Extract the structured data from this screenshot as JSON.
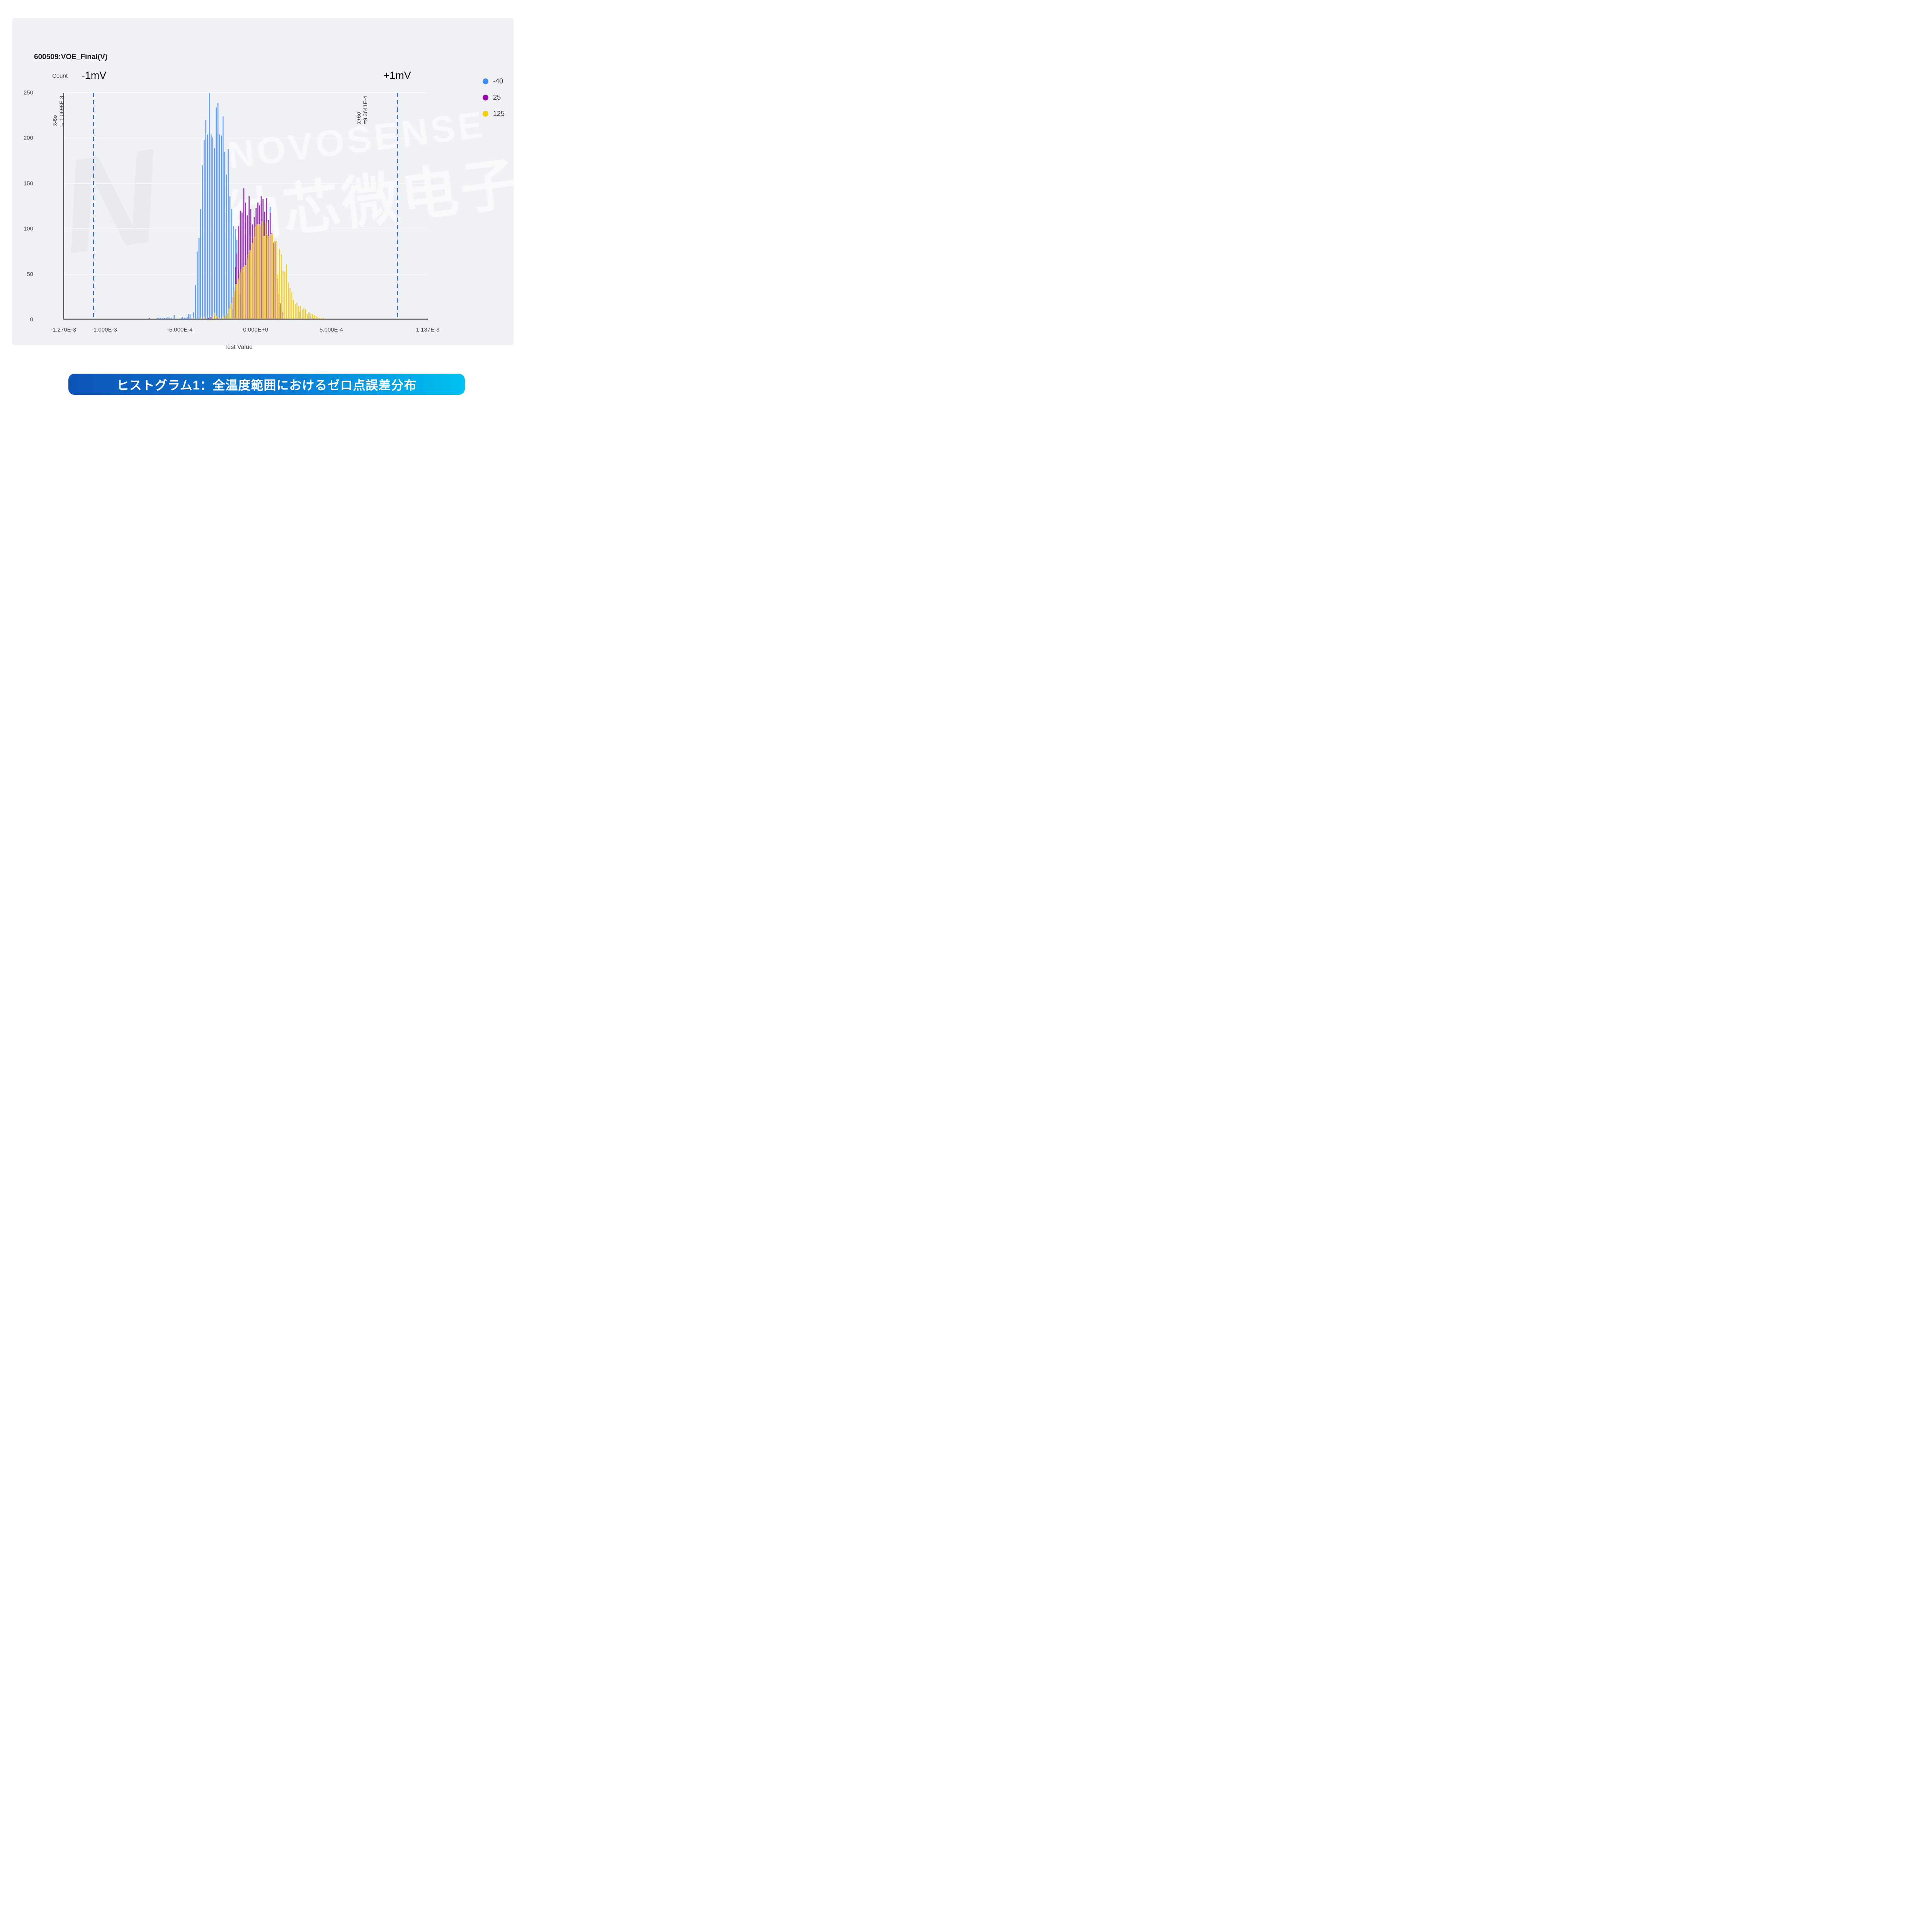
{
  "header": {
    "title": "600509:VOE_Final(V)"
  },
  "chart": {
    "y_axis_label": "Count",
    "x_axis_label": "Test Value",
    "annotations": {
      "left_limit": "-1mV",
      "right_limit": "+1mV"
    },
    "colors": {
      "card_background": "#f0f1f4",
      "gridline": "#fafbfd",
      "axis": "#474747",
      "ref_line": "#2c6cdd"
    }
  },
  "watermark": {
    "letter": "N",
    "brand": "NOVOSENSE",
    "cjk": "纳芯微电子"
  },
  "caption": {
    "text": "ヒストグラム1：全温度範囲におけるゼロ点誤差分布"
  },
  "chart_data": {
    "type": "bar",
    "subtype": "overlaid-histogram",
    "title": "600509:VOE_Final(V)",
    "xlabel": "Test Value",
    "ylabel": "Count",
    "xlim": [
      -0.00127,
      0.001137
    ],
    "ylim": [
      0,
      250
    ],
    "grid": true,
    "legend_position": "top-right",
    "bin_width_volts": 1.125e-05,
    "value_unit_of_bins": 0.0001,
    "x_ticks": [
      {
        "label": "-1.270E-3",
        "value": -0.00127
      },
      {
        "label": "-1.000E-3",
        "value": -0.001
      },
      {
        "label": "-5.000E-4",
        "value": -0.0005
      },
      {
        "label": "0.000E+0",
        "value": 0.0
      },
      {
        "label": "5.000E-4",
        "value": 0.0005
      },
      {
        "label": "1.137E-3",
        "value": 0.001137
      }
    ],
    "y_ticks": [
      0,
      50,
      100,
      150,
      200,
      250
    ],
    "ref_lines": [
      {
        "value": -0.0010698,
        "label_sigma": "x̃-6σ",
        "label_value": "=-1.0698E-3"
      },
      {
        "value": 0.00093641,
        "label_sigma": "x̃+6σ",
        "label_value": "=9.3641E-4"
      }
    ],
    "legend": [
      {
        "label": "-40",
        "color": "#3d8af0"
      },
      {
        "label": "25",
        "color": "#9208aa"
      },
      {
        "label": "125",
        "color": "#f5cd0a"
      }
    ],
    "series": [
      {
        "name": "-40",
        "fill": "#669ff2",
        "opacity": 1.0,
        "bins": [
          [
            -6.5,
            2
          ],
          [
            -6.39,
            2
          ],
          [
            -6.28,
            2
          ],
          [
            -6.12,
            2
          ],
          [
            -6.01,
            2
          ],
          [
            -5.9,
            2
          ],
          [
            -5.79,
            3
          ],
          [
            -5.68,
            2
          ],
          [
            -5.57,
            2
          ],
          [
            -5.38,
            5
          ],
          [
            -4.9,
            2
          ],
          [
            -4.82,
            3
          ],
          [
            -4.71,
            2
          ],
          [
            -4.6,
            2
          ],
          [
            -4.49,
            3
          ],
          [
            -4.44,
            6
          ],
          [
            -4.33,
            6
          ],
          [
            -4.09,
            8
          ],
          [
            -3.97,
            38
          ],
          [
            -3.86,
            75
          ],
          [
            -3.74,
            90
          ],
          [
            -3.63,
            122
          ],
          [
            -3.52,
            170
          ],
          [
            -3.4,
            198
          ],
          [
            -3.29,
            220
          ],
          [
            -3.18,
            204
          ],
          [
            -3.06,
            250
          ],
          [
            -2.94,
            204
          ],
          [
            -2.83,
            201
          ],
          [
            -2.72,
            189
          ],
          [
            -2.6,
            234
          ],
          [
            -2.49,
            239
          ],
          [
            -2.38,
            204
          ],
          [
            -2.26,
            203
          ],
          [
            -2.15,
            224
          ],
          [
            -2.04,
            185
          ],
          [
            -1.92,
            160
          ],
          [
            -1.81,
            188
          ],
          [
            -1.7,
            136
          ],
          [
            -1.58,
            122
          ],
          [
            -1.45,
            103
          ],
          [
            -1.34,
            100
          ],
          [
            -1.24,
            88
          ],
          [
            -1.12,
            55
          ],
          [
            -1.01,
            28
          ],
          [
            -0.9,
            14
          ],
          [
            -0.78,
            8
          ],
          [
            -0.67,
            5
          ],
          [
            -0.55,
            3
          ],
          [
            -0.43,
            2
          ],
          [
            0.15,
            3
          ],
          [
            0.51,
            2
          ],
          [
            0.96,
            124
          ],
          [
            1.54,
            2
          ],
          [
            2.92,
            9
          ],
          [
            3.5,
            8
          ],
          [
            3.61,
            4
          ],
          [
            3.84,
            2
          ]
        ]
      },
      {
        "name": "25",
        "fill": "#8a0ea8",
        "opacity": 0.85,
        "bins": [
          [
            -7.03,
            2
          ],
          [
            -3.12,
            2
          ],
          [
            -2.95,
            3
          ],
          [
            -2.7,
            4
          ],
          [
            -2.55,
            2
          ],
          [
            -1.9,
            2
          ],
          [
            -1.51,
            12
          ],
          [
            -1.43,
            25
          ],
          [
            -1.31,
            58
          ],
          [
            -1.24,
            73
          ],
          [
            -1.12,
            103
          ],
          [
            -1.01,
            120
          ],
          [
            -0.9,
            118
          ],
          [
            -0.78,
            145
          ],
          [
            -0.67,
            129
          ],
          [
            -0.55,
            115
          ],
          [
            -0.43,
            136
          ],
          [
            -0.32,
            122
          ],
          [
            -0.2,
            105
          ],
          [
            -0.09,
            113
          ],
          [
            0.03,
            123
          ],
          [
            0.15,
            129
          ],
          [
            0.26,
            126
          ],
          [
            0.37,
            136
          ],
          [
            0.49,
            133
          ],
          [
            0.6,
            119
          ],
          [
            0.72,
            134
          ],
          [
            0.84,
            110
          ],
          [
            0.96,
            118
          ],
          [
            1.07,
            95
          ],
          [
            1.19,
            85
          ],
          [
            1.31,
            86
          ],
          [
            1.42,
            45
          ],
          [
            1.54,
            28
          ],
          [
            1.65,
            18
          ],
          [
            1.77,
            8
          ]
        ]
      },
      {
        "name": "125",
        "fill": "#f3ca10",
        "opacity": 0.85,
        "bins": [
          [
            -4.11,
            2
          ],
          [
            -3.63,
            2
          ],
          [
            -3.4,
            3
          ],
          [
            -2.83,
            3
          ],
          [
            -2.72,
            7
          ],
          [
            -2.6,
            4
          ],
          [
            -2.38,
            2
          ],
          [
            -2.15,
            3
          ],
          [
            -1.98,
            5
          ],
          [
            -1.86,
            7
          ],
          [
            -1.74,
            12
          ],
          [
            -1.63,
            18
          ],
          [
            -1.51,
            25
          ],
          [
            -1.4,
            32
          ],
          [
            -1.28,
            39
          ],
          [
            -1.17,
            45
          ],
          [
            -1.05,
            52
          ],
          [
            -0.94,
            55
          ],
          [
            -0.82,
            58
          ],
          [
            -0.71,
            60
          ],
          [
            -0.59,
            67
          ],
          [
            -0.48,
            72
          ],
          [
            -0.36,
            76
          ],
          [
            -0.25,
            84
          ],
          [
            -0.13,
            91
          ],
          [
            -0.02,
            102
          ],
          [
            0.1,
            105
          ],
          [
            0.21,
            105
          ],
          [
            0.32,
            104
          ],
          [
            0.44,
            108
          ],
          [
            0.55,
            92
          ],
          [
            0.66,
            107
          ],
          [
            0.78,
            94
          ],
          [
            0.89,
            92
          ],
          [
            1.01,
            94
          ],
          [
            1.12,
            94
          ],
          [
            1.24,
            87
          ],
          [
            1.35,
            87
          ],
          [
            1.47,
            50
          ],
          [
            1.58,
            78
          ],
          [
            1.7,
            72
          ],
          [
            1.81,
            54
          ],
          [
            1.93,
            53
          ],
          [
            2.04,
            61
          ],
          [
            2.16,
            41
          ],
          [
            2.27,
            35
          ],
          [
            2.39,
            30
          ],
          [
            2.5,
            22
          ],
          [
            2.62,
            17
          ],
          [
            2.73,
            19
          ],
          [
            2.85,
            15
          ],
          [
            2.96,
            15
          ],
          [
            3.08,
            11
          ],
          [
            3.19,
            13
          ],
          [
            3.31,
            11
          ],
          [
            3.42,
            6
          ],
          [
            3.54,
            8
          ],
          [
            3.65,
            7
          ],
          [
            3.77,
            6
          ],
          [
            3.88,
            5
          ],
          [
            4.0,
            4
          ],
          [
            4.11,
            3
          ],
          [
            4.23,
            2
          ],
          [
            4.36,
            2
          ],
          [
            4.48,
            2
          ]
        ]
      }
    ]
  }
}
